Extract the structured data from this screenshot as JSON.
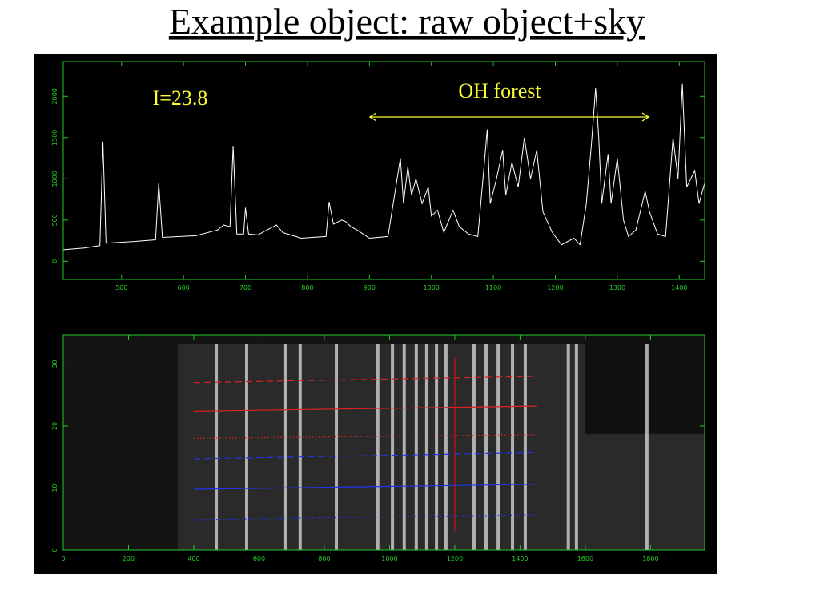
{
  "title": "Example object: raw object+sky",
  "chart_data": [
    {
      "type": "line",
      "color": "#ffffff",
      "axis_color": "#22cc22",
      "annotations": [
        "I=23.8",
        "OH forest"
      ],
      "annotation_color": "#ffff33",
      "xlim": [
        406,
        1441
      ],
      "ylim": [
        -220,
        2420
      ],
      "xticks": [
        500,
        600,
        700,
        800,
        900,
        1000,
        1100,
        1200,
        1300,
        1400
      ],
      "yticks": [
        0,
        500,
        1000,
        1500,
        2000
      ],
      "x": [
        406,
        440,
        465,
        470,
        475,
        520,
        555,
        560,
        566,
        620,
        655,
        665,
        675,
        680,
        686,
        697,
        700,
        705,
        720,
        740,
        750,
        760,
        790,
        830,
        835,
        842,
        855,
        862,
        870,
        880,
        900,
        930,
        950,
        955,
        962,
        968,
        975,
        985,
        995,
        1000,
        1010,
        1020,
        1035,
        1045,
        1060,
        1075,
        1085,
        1090,
        1095,
        1105,
        1115,
        1120,
        1130,
        1140,
        1150,
        1160,
        1170,
        1180,
        1195,
        1210,
        1230,
        1240,
        1250,
        1258,
        1265,
        1270,
        1275,
        1285,
        1290,
        1300,
        1310,
        1318,
        1330,
        1345,
        1352,
        1365,
        1378,
        1390,
        1398,
        1405,
        1412,
        1425,
        1432,
        1441
      ],
      "values": [
        140,
        160,
        190,
        1450,
        220,
        240,
        260,
        950,
        290,
        310,
        380,
        440,
        420,
        1400,
        330,
        330,
        650,
        330,
        320,
        400,
        440,
        350,
        280,
        300,
        720,
        450,
        500,
        480,
        420,
        380,
        280,
        300,
        1250,
        700,
        1150,
        800,
        1000,
        700,
        900,
        550,
        620,
        350,
        620,
        420,
        330,
        300,
        1150,
        1600,
        700,
        1000,
        1350,
        800,
        1200,
        900,
        1500,
        1000,
        1350,
        600,
        350,
        200,
        280,
        200,
        700,
        1400,
        2100,
        1500,
        700,
        1300,
        700,
        1250,
        500,
        300,
        380,
        850,
        600,
        330,
        300,
        1500,
        1000,
        2150,
        900,
        1100,
        700,
        950
      ]
    },
    {
      "type": "image2d",
      "axis_color": "#22cc22",
      "xlim": [
        0,
        1966
      ],
      "ylim": [
        0,
        34.7
      ],
      "xticks": [
        0,
        200,
        400,
        600,
        800,
        1000,
        1200,
        1400,
        1600,
        1800
      ],
      "yticks": [
        0,
        10,
        20,
        30
      ],
      "sky_lines": [
        469,
        562,
        682,
        726,
        837,
        964,
        1009,
        1045,
        1082,
        1114,
        1144,
        1173,
        1259,
        1296,
        1333,
        1377,
        1416,
        1548,
        1573,
        1789
      ],
      "series": [
        {
          "color": "#dd2222",
          "style": "dashed",
          "x": [
            400,
            1450
          ],
          "values": [
            27,
            28
          ]
        },
        {
          "color": "#dd2222",
          "style": "solid",
          "x": [
            400,
            1450
          ],
          "values": [
            22.4,
            23.2
          ]
        },
        {
          "color": "#dd2222",
          "style": "dotted",
          "x": [
            400,
            1450
          ],
          "values": [
            18,
            18.6
          ]
        },
        {
          "color": "#2233ee",
          "style": "dashed",
          "x": [
            400,
            1450
          ],
          "values": [
            14.7,
            15.7
          ]
        },
        {
          "color": "#2233ee",
          "style": "solid",
          "x": [
            400,
            1450
          ],
          "values": [
            9.8,
            10.6
          ]
        },
        {
          "color": "#2233ee",
          "style": "dotted",
          "x": [
            400,
            1450
          ],
          "values": [
            4.9,
            5.7
          ]
        },
        {
          "color": "#cc1111",
          "style": "solid",
          "x": [
            1200,
            1200
          ],
          "values": [
            3,
            31
          ]
        }
      ]
    }
  ]
}
